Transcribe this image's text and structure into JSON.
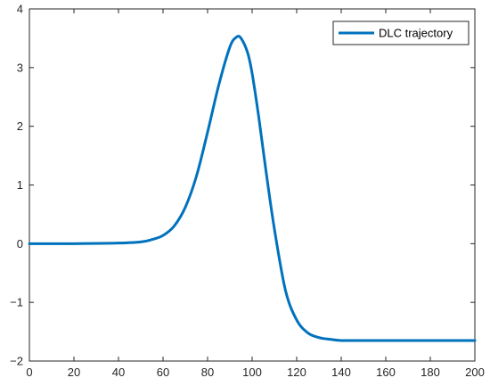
{
  "chart_data": {
    "type": "line",
    "title": "",
    "xlabel": "",
    "ylabel": "",
    "xlim": [
      0,
      200
    ],
    "ylim": [
      -2,
      4
    ],
    "xticks": [
      0,
      20,
      40,
      60,
      80,
      100,
      120,
      140,
      160,
      180,
      200
    ],
    "yticks": [
      -2,
      -1,
      0,
      1,
      2,
      3,
      4
    ],
    "xtick_labels": [
      "0",
      "20",
      "40",
      "60",
      "80",
      "100",
      "120",
      "140",
      "160",
      "180",
      "200"
    ],
    "ytick_labels": [
      "−2",
      "−1",
      "0",
      "1",
      "2",
      "3",
      "4"
    ],
    "grid": false,
    "legend_position": "top-right",
    "series": [
      {
        "name": "DLC trajectory",
        "color": "#0072BD",
        "x": [
          0,
          20,
          40,
          50,
          55,
          60,
          65,
          70,
          75,
          80,
          85,
          90,
          93,
          95,
          98,
          100,
          103,
          106,
          110,
          115,
          120,
          125,
          130,
          135,
          140,
          150,
          160,
          180,
          200
        ],
        "y": [
          0,
          0,
          0.01,
          0.03,
          0.07,
          0.14,
          0.3,
          0.62,
          1.15,
          1.9,
          2.7,
          3.35,
          3.52,
          3.5,
          3.25,
          2.9,
          2.15,
          1.3,
          0.25,
          -0.8,
          -1.3,
          -1.52,
          -1.6,
          -1.63,
          -1.65,
          -1.65,
          -1.65,
          -1.65,
          -1.65
        ]
      }
    ]
  }
}
